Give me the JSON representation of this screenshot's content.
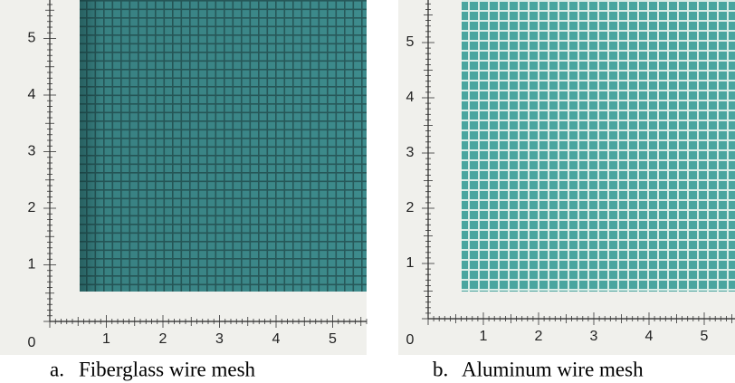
{
  "panels": [
    {
      "caption_letter": "a.",
      "caption": "Fiberglass wire mesh",
      "origin_label": "0",
      "x_labels": [
        "1",
        "2",
        "3",
        "4",
        "5"
      ],
      "y_labels": [
        "1",
        "2",
        "3",
        "4",
        "5"
      ]
    },
    {
      "caption_letter": "b.",
      "caption": "Aluminum wire mesh",
      "origin_label": "0",
      "x_labels": [
        "1",
        "2",
        "3",
        "4",
        "5"
      ],
      "y_labels": [
        "1",
        "2",
        "3",
        "4",
        "5"
      ]
    }
  ]
}
